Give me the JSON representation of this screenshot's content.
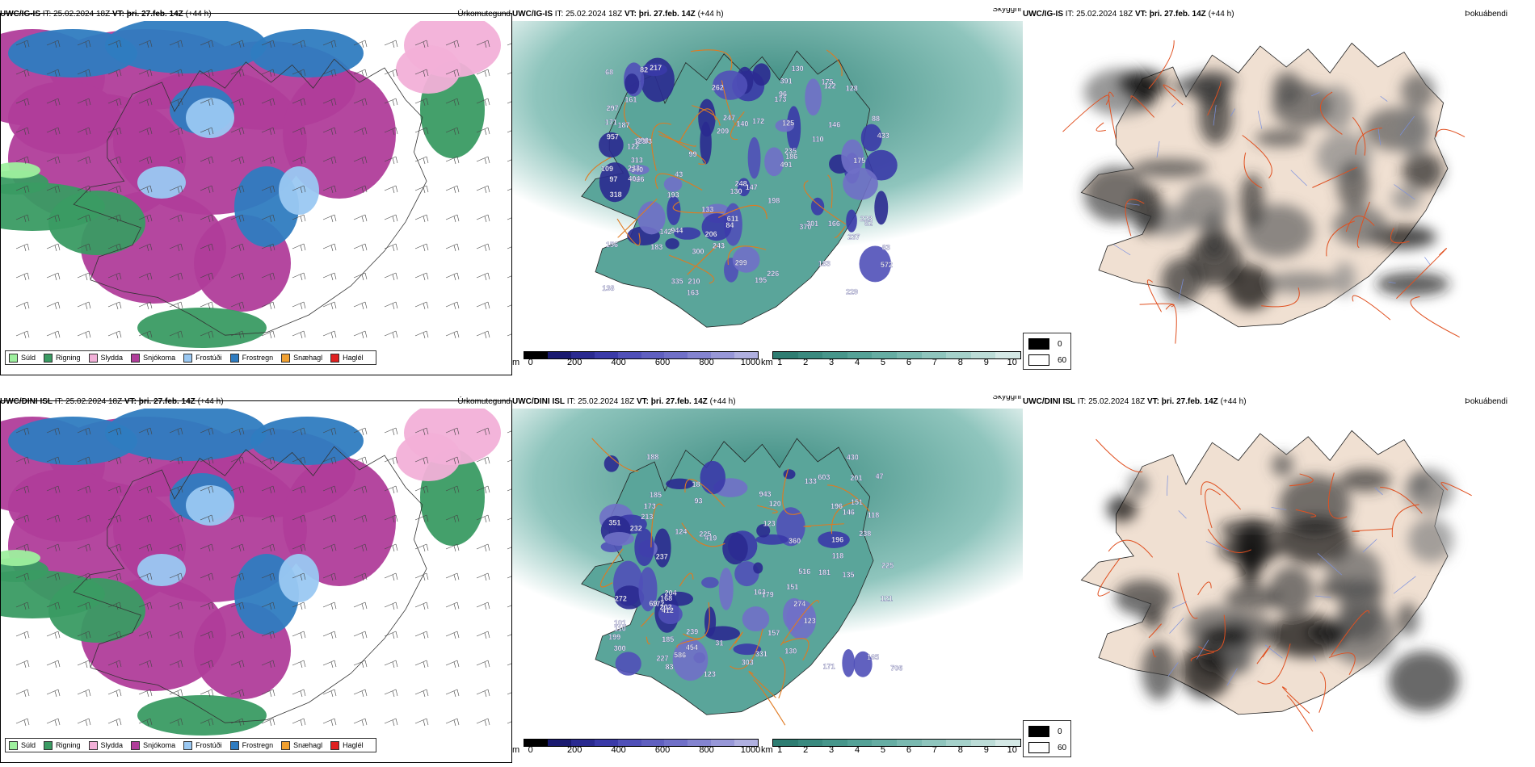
{
  "rows": [
    {
      "model": "UWC/IG-IS",
      "panels": {
        "ptype": {
          "it_label": "IT:",
          "it": "25.02.2024 18Z",
          "vt_label": "VT:",
          "vt": "þri. 27.feb. 14Z",
          "lead": "(+44 h)",
          "title": "Úrkomutegund"
        },
        "vis": {
          "it_label": "IT:",
          "it": "25.02.2024 18Z",
          "vt_label": "VT:",
          "vt": "þri. 27.feb. 14Z",
          "lead": "(+44 h)",
          "title": "Skyggni"
        },
        "cloud": {
          "it_label": "IT:",
          "it": "25.02.2024 18Z",
          "vt_label": "VT:",
          "vt": "þri. 27.feb. 14Z",
          "lead": "(+44 h)",
          "title": "Þokuábendi"
        }
      },
      "cloud_base_labels": [
        "611",
        "572",
        "217",
        "229",
        "237",
        "226",
        "957",
        "391",
        "235",
        "210",
        "173",
        "370",
        "171",
        "290",
        "187",
        "147",
        "195",
        "122",
        "161",
        "83",
        "123",
        "313",
        "300",
        "248",
        "228",
        "206",
        "140",
        "146",
        "491",
        "299",
        "426",
        "247",
        "166",
        "142",
        "340",
        "175",
        "209",
        "109",
        "110",
        "97",
        "130",
        "156",
        "84",
        "122",
        "83",
        "88",
        "99",
        "82",
        "175",
        "243",
        "183",
        "198",
        "133",
        "233",
        "262",
        "172",
        "138",
        "125",
        "335",
        "944",
        "186",
        "128",
        "82",
        "183",
        "130",
        "297",
        "163",
        "68",
        "193",
        "96",
        "43",
        "404",
        "318",
        "301",
        "433"
      ]
    },
    {
      "model": "UWC/DINI ISL",
      "panels": {
        "ptype": {
          "it_label": "IT:",
          "it": "25.02.2024 18Z",
          "vt_label": "VT:",
          "vt": "þri. 27.feb. 14Z",
          "lead": "(+44 h)",
          "title": "Úrkomutegund"
        },
        "vis": {
          "it_label": "IT:",
          "it": "25.02.2024 18Z",
          "vt_label": "VT:",
          "vt": "þri. 27.feb. 14Z",
          "lead": "(+44 h)",
          "title": "Skyggni"
        },
        "cloud": {
          "it_label": "IT:",
          "it": "25.02.2024 18Z",
          "vt_label": "VT:",
          "vt": "þri. 27.feb. 14Z",
          "lead": "(+44 h)",
          "title": "Þokuábendi"
        }
      },
      "cloud_base_labels": [
        "454",
        "225",
        "300",
        "419",
        "351",
        "586",
        "603",
        "201",
        "225",
        "196",
        "196",
        "151",
        "135",
        "188",
        "303",
        "227",
        "239",
        "412",
        "185",
        "331",
        "173",
        "204",
        "168",
        "130",
        "179",
        "360",
        "706",
        "943",
        "237",
        "157",
        "163",
        "185",
        "123",
        "146",
        "165",
        "133",
        "118",
        "171",
        "118",
        "181",
        "272",
        "516",
        "199",
        "232",
        "93",
        "121",
        "124",
        "172",
        "238",
        "430",
        "120",
        "213",
        "202",
        "151",
        "101",
        "274",
        "123",
        "47",
        "123",
        "31",
        "69",
        "83",
        "18",
        "110"
      ]
    }
  ],
  "ptype_legend": [
    {
      "label": "Súld",
      "color": "#9ef09e"
    },
    {
      "label": "Rigning",
      "color": "#3a9b63"
    },
    {
      "label": "Slydda",
      "color": "#f2b0d8"
    },
    {
      "label": "Snjókoma",
      "color": "#b03d9a"
    },
    {
      "label": "Frostúði",
      "color": "#9ac8f2"
    },
    {
      "label": "Frostregn",
      "color": "#2f7cc0"
    },
    {
      "label": "Snæhagl",
      "color": "#f0a030"
    },
    {
      "label": "Haglél",
      "color": "#e02020"
    }
  ],
  "cloud_base_scale": {
    "unit": "m",
    "ticks": [
      "0",
      "200",
      "400",
      "600",
      "800",
      "1000"
    ],
    "colors": [
      "#000000",
      "#1a1a70",
      "#2a2a90",
      "#3a3aa8",
      "#5050b8",
      "#6060c0",
      "#7070c8",
      "#8484d0",
      "#9898d8",
      "#b0b0e0"
    ]
  },
  "visibility_scale": {
    "unit": "km",
    "ticks": [
      "1",
      "2",
      "3",
      "4",
      "5",
      "6",
      "7",
      "8",
      "9",
      "10"
    ],
    "colors": [
      "#2e7d72",
      "#3a8a7f",
      "#47968b",
      "#55a297",
      "#66ada3",
      "#7ab9b0",
      "#8fc5bd",
      "#a5d1ca",
      "#bcdcd7",
      "#d4e8e5"
    ]
  },
  "fog_legend": [
    {
      "label": "0",
      "color": "#000000"
    },
    {
      "label": "60",
      "color": "#ffffff"
    }
  ]
}
